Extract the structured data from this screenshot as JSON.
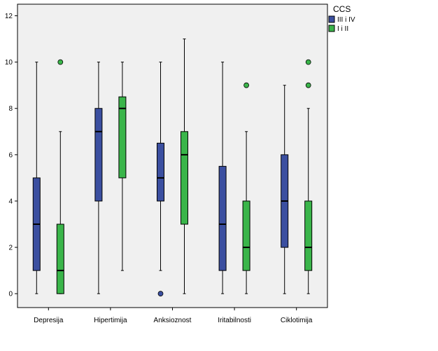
{
  "chart_data": {
    "type": "boxplot",
    "categories": [
      "Depresija",
      "Hipertimija",
      "Anksioznost",
      "Iritabilnosti",
      "Ciklotimija"
    ],
    "ylim": [
      -0.6,
      12.5
    ],
    "yticks": [
      0,
      2,
      4,
      6,
      8,
      10,
      12
    ],
    "grid": false,
    "legend": {
      "title": "CCS",
      "placement": "top-right-outside",
      "entries": [
        "III i IV",
        "I i II"
      ]
    },
    "series": [
      {
        "name": "III i IV",
        "color": "#3b4fa0",
        "boxes": [
          {
            "min": 0,
            "q1": 1,
            "median": 3,
            "q3": 5,
            "max": 10,
            "outliers": []
          },
          {
            "min": 0,
            "q1": 4,
            "median": 7,
            "q3": 8,
            "max": 10,
            "outliers": []
          },
          {
            "min": 1,
            "q1": 4,
            "median": 5,
            "q3": 6.5,
            "max": 10,
            "outliers": [
              0
            ]
          },
          {
            "min": 0,
            "q1": 1,
            "median": 3,
            "q3": 5.5,
            "max": 10,
            "outliers": []
          },
          {
            "min": 0,
            "q1": 2,
            "median": 4,
            "q3": 6,
            "max": 9,
            "outliers": []
          }
        ]
      },
      {
        "name": "I i II",
        "color": "#3ab54a",
        "boxes": [
          {
            "min": 0,
            "q1": 0,
            "median": 1,
            "q3": 3,
            "max": 7,
            "outliers": [
              10
            ]
          },
          {
            "min": 1,
            "q1": 5,
            "median": 8,
            "q3": 8.5,
            "max": 10,
            "outliers": []
          },
          {
            "min": 0,
            "q1": 3,
            "median": 6,
            "q3": 7,
            "max": 11,
            "outliers": []
          },
          {
            "min": 0,
            "q1": 1,
            "median": 2,
            "q3": 4,
            "max": 7,
            "outliers": [
              9
            ]
          },
          {
            "min": 0,
            "q1": 1,
            "median": 2,
            "q3": 4,
            "max": 8,
            "outliers": [
              9,
              10
            ]
          }
        ]
      }
    ]
  },
  "colors": {
    "plot_background": "#f0f0f0",
    "frame": "#000000"
  }
}
